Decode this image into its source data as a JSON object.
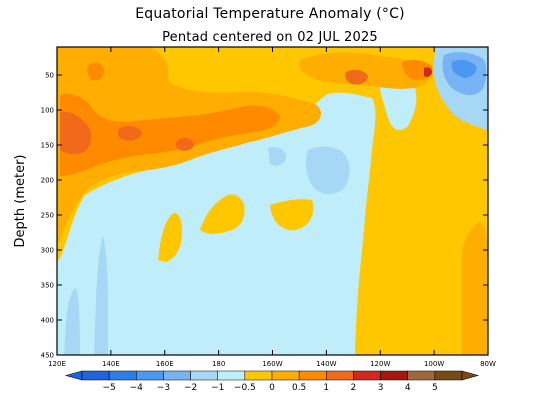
{
  "header": {
    "title": "Equatorial Temperature Anomaly (°C)",
    "subtitle": "Pentad centered on 02 JUL 2025"
  },
  "chart_data": {
    "type": "heatmap",
    "title": "Equatorial Temperature Anomaly (°C)",
    "subtitle": "Pentad centered on 02 JUL 2025",
    "xlabel": "",
    "ylabel": "Depth (meter)",
    "xlim": [
      120,
      280
    ],
    "ylim": [
      450,
      10
    ],
    "x_ticks": [
      {
        "v": 120,
        "label": "120E"
      },
      {
        "v": 140,
        "label": "140E"
      },
      {
        "v": 160,
        "label": "160E"
      },
      {
        "v": 180,
        "label": "180"
      },
      {
        "v": 200,
        "label": "160W"
      },
      {
        "v": 220,
        "label": "140W"
      },
      {
        "v": 240,
        "label": "120W"
      },
      {
        "v": 260,
        "label": "100W"
      },
      {
        "v": 280,
        "label": "80W"
      }
    ],
    "y_ticks": [
      50,
      100,
      150,
      200,
      250,
      300,
      350,
      400,
      450
    ],
    "colorbar": {
      "levels": [
        -5,
        -4,
        -3,
        -2,
        -1,
        -0.5,
        0,
        0.5,
        1,
        2,
        3,
        4,
        5
      ],
      "labels": [
        "−5",
        "−4",
        "−3",
        "−2",
        "−1",
        "−0.5",
        "0",
        "0.5",
        "1",
        "2",
        "3",
        "4",
        "5"
      ],
      "colors": [
        "#1e64dc",
        "#2c7fe8",
        "#4a98f0",
        "#78b4f5",
        "#a6d8f5",
        "#bfeefa",
        "#ffc700",
        "#ffae00",
        "#ff8a00",
        "#f06a1a",
        "#d2281e",
        "#a5180e",
        "#a0683a",
        "#7a4a14"
      ]
    },
    "regions": [
      {
        "anomaly": "0 to 0.5",
        "x": [
          120,
          280
        ],
        "depth": [
          10,
          450
        ]
      },
      {
        "anomaly": "-0.5 to 0",
        "x": [
          125,
          135
        ],
        "depth": [
          250,
          450
        ]
      },
      {
        "anomaly": "-0.5 to 0",
        "x": [
          140,
          245
        ],
        "depth": [
          150,
          450
        ]
      },
      {
        "anomaly": "-0.5 to 0",
        "x": [
          210,
          230
        ],
        "depth": [
          30,
          160
        ]
      },
      {
        "anomaly": "-1 to -0.5",
        "x": [
          132,
          137
        ],
        "depth": [
          260,
          450
        ]
      },
      {
        "anomaly": "-1 to -0.5",
        "x": [
          210,
          228
        ],
        "depth": [
          130,
          200
        ]
      },
      {
        "anomaly": "-1 to -0.5",
        "x": [
          258,
          280
        ],
        "depth": [
          15,
          110
        ]
      },
      {
        "anomaly": "-2 to -1",
        "x": [
          262,
          278
        ],
        "depth": [
          30,
          85
        ]
      },
      {
        "anomaly": "0.5 to 1",
        "x": [
          121,
          150
        ],
        "depth": [
          15,
          210
        ]
      },
      {
        "anomaly": "0.5 to 1",
        "x": [
          150,
          205
        ],
        "depth": [
          80,
          150
        ]
      },
      {
        "anomaly": "0.5 to 1",
        "x": [
          225,
          260
        ],
        "depth": [
          25,
          90
        ]
      },
      {
        "anomaly": "1 to 2",
        "x": [
          122,
          138
        ],
        "depth": [
          90,
          185
        ]
      },
      {
        "anomaly": "1 to 2",
        "x": [
          140,
          200
        ],
        "depth": [
          100,
          150
        ]
      },
      {
        "anomaly": "2 to 3",
        "x": [
          248,
          260
        ],
        "depth": [
          35,
          60
        ]
      }
    ]
  }
}
